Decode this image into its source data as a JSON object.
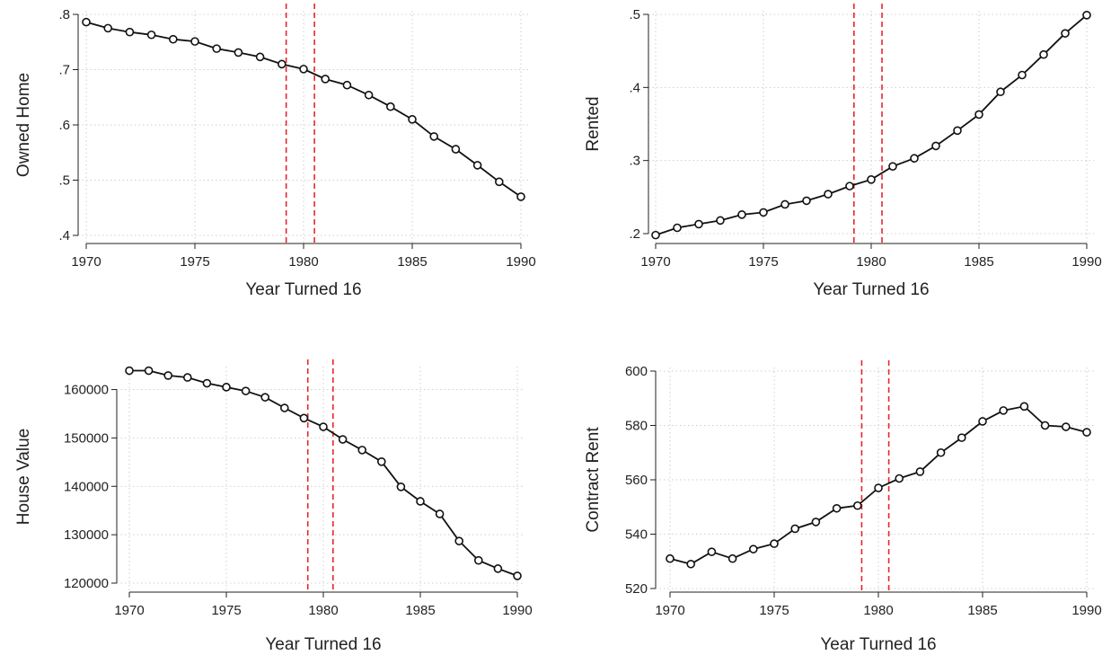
{
  "chart_data": [
    {
      "type": "line",
      "title": "",
      "xlabel": "Year Turned 16",
      "ylabel": "Owned Home",
      "xlim": [
        1970,
        1990
      ],
      "ylim": [
        0.4,
        0.8
      ],
      "xticks": [
        1970,
        1975,
        1980,
        1985,
        1990
      ],
      "xtick_labels": [
        "1970",
        "1975",
        "1980",
        "1985",
        "1990"
      ],
      "yticks": [
        0.4,
        0.5,
        0.6,
        0.7,
        0.8
      ],
      "ytick_labels": [
        ".4",
        ".5",
        ".6",
        ".7",
        ".8"
      ],
      "grid": true,
      "legend": "none",
      "reference_lines_x": [
        1979.2,
        1980.5
      ],
      "reference_line_color": "#e8262b",
      "series": [
        {
          "x": [
            1970,
            1971,
            1972,
            1973,
            1974,
            1975,
            1976,
            1977,
            1978,
            1979,
            1980,
            1981,
            1982,
            1983,
            1984,
            1985,
            1986,
            1987,
            1988,
            1989,
            1990
          ],
          "values": [
            0.786,
            0.775,
            0.768,
            0.763,
            0.755,
            0.751,
            0.738,
            0.731,
            0.723,
            0.71,
            0.701,
            0.683,
            0.672,
            0.654,
            0.633,
            0.61,
            0.579,
            0.556,
            0.527,
            0.497,
            0.47
          ]
        }
      ]
    },
    {
      "type": "line",
      "title": "",
      "xlabel": "Year Turned 16",
      "ylabel": "Rented",
      "xlim": [
        1970,
        1990
      ],
      "ylim": [
        0.2,
        0.5
      ],
      "xticks": [
        1970,
        1975,
        1980,
        1985,
        1990
      ],
      "xtick_labels": [
        "1970",
        "1975",
        "1980",
        "1985",
        "1990"
      ],
      "yticks": [
        0.2,
        0.3,
        0.4,
        0.5
      ],
      "ytick_labels": [
        ".2",
        ".3",
        ".4",
        ".5"
      ],
      "grid": true,
      "legend": "none",
      "reference_lines_x": [
        1979.2,
        1980.5
      ],
      "reference_line_color": "#e8262b",
      "series": [
        {
          "x": [
            1970,
            1971,
            1972,
            1973,
            1974,
            1975,
            1976,
            1977,
            1978,
            1979,
            1980,
            1981,
            1982,
            1983,
            1984,
            1985,
            1986,
            1987,
            1988,
            1989,
            1990
          ],
          "values": [
            0.198,
            0.208,
            0.213,
            0.218,
            0.226,
            0.229,
            0.24,
            0.245,
            0.254,
            0.265,
            0.274,
            0.292,
            0.303,
            0.32,
            0.341,
            0.363,
            0.394,
            0.417,
            0.445,
            0.474,
            0.499
          ]
        }
      ]
    },
    {
      "type": "line",
      "title": "",
      "xlabel": "Year Turned 16",
      "ylabel": "House Value",
      "xlim": [
        1970,
        1990
      ],
      "ylim": [
        120000,
        164000
      ],
      "xticks": [
        1970,
        1975,
        1980,
        1985,
        1990
      ],
      "xtick_labels": [
        "1970",
        "1975",
        "1980",
        "1985",
        "1990"
      ],
      "yticks": [
        120000,
        130000,
        140000,
        150000,
        160000
      ],
      "ytick_labels": [
        "120000",
        "130000",
        "140000",
        "150000",
        "160000"
      ],
      "grid": true,
      "legend": "none",
      "reference_lines_x": [
        1979.2,
        1980.5
      ],
      "reference_line_color": "#e8262b",
      "series": [
        {
          "x": [
            1970,
            1971,
            1972,
            1973,
            1974,
            1975,
            1976,
            1977,
            1978,
            1979,
            1980,
            1981,
            1982,
            1983,
            1984,
            1985,
            1986,
            1987,
            1988,
            1989,
            1990
          ],
          "values": [
            163900,
            163900,
            162900,
            162500,
            161300,
            160500,
            159700,
            158400,
            156200,
            154100,
            152300,
            149700,
            147500,
            145100,
            139900,
            136900,
            134300,
            128700,
            124700,
            123000,
            121500
          ]
        }
      ]
    },
    {
      "type": "line",
      "title": "",
      "xlabel": "Year Turned 16",
      "ylabel": "Contract Rent",
      "xlim": [
        1970,
        1990
      ],
      "ylim": [
        520,
        600
      ],
      "xticks": [
        1970,
        1975,
        1980,
        1985,
        1990
      ],
      "xtick_labels": [
        "1970",
        "1975",
        "1980",
        "1985",
        "1990"
      ],
      "yticks": [
        520,
        540,
        560,
        580,
        600
      ],
      "ytick_labels": [
        "520",
        "540",
        "560",
        "580",
        "600"
      ],
      "grid": true,
      "legend": "none",
      "reference_lines_x": [
        1979.2,
        1980.5
      ],
      "reference_line_color": "#e8262b",
      "series": [
        {
          "x": [
            1970,
            1971,
            1972,
            1973,
            1974,
            1975,
            1976,
            1977,
            1978,
            1979,
            1980,
            1981,
            1982,
            1983,
            1984,
            1985,
            1986,
            1987,
            1988,
            1989,
            1990
          ],
          "values": [
            531,
            529,
            533.5,
            531,
            534.5,
            536.5,
            542,
            544.5,
            549.5,
            550.5,
            557,
            560.5,
            563,
            570,
            575.5,
            581.5,
            585.5,
            587,
            580,
            579.5,
            577.5
          ]
        }
      ]
    }
  ]
}
